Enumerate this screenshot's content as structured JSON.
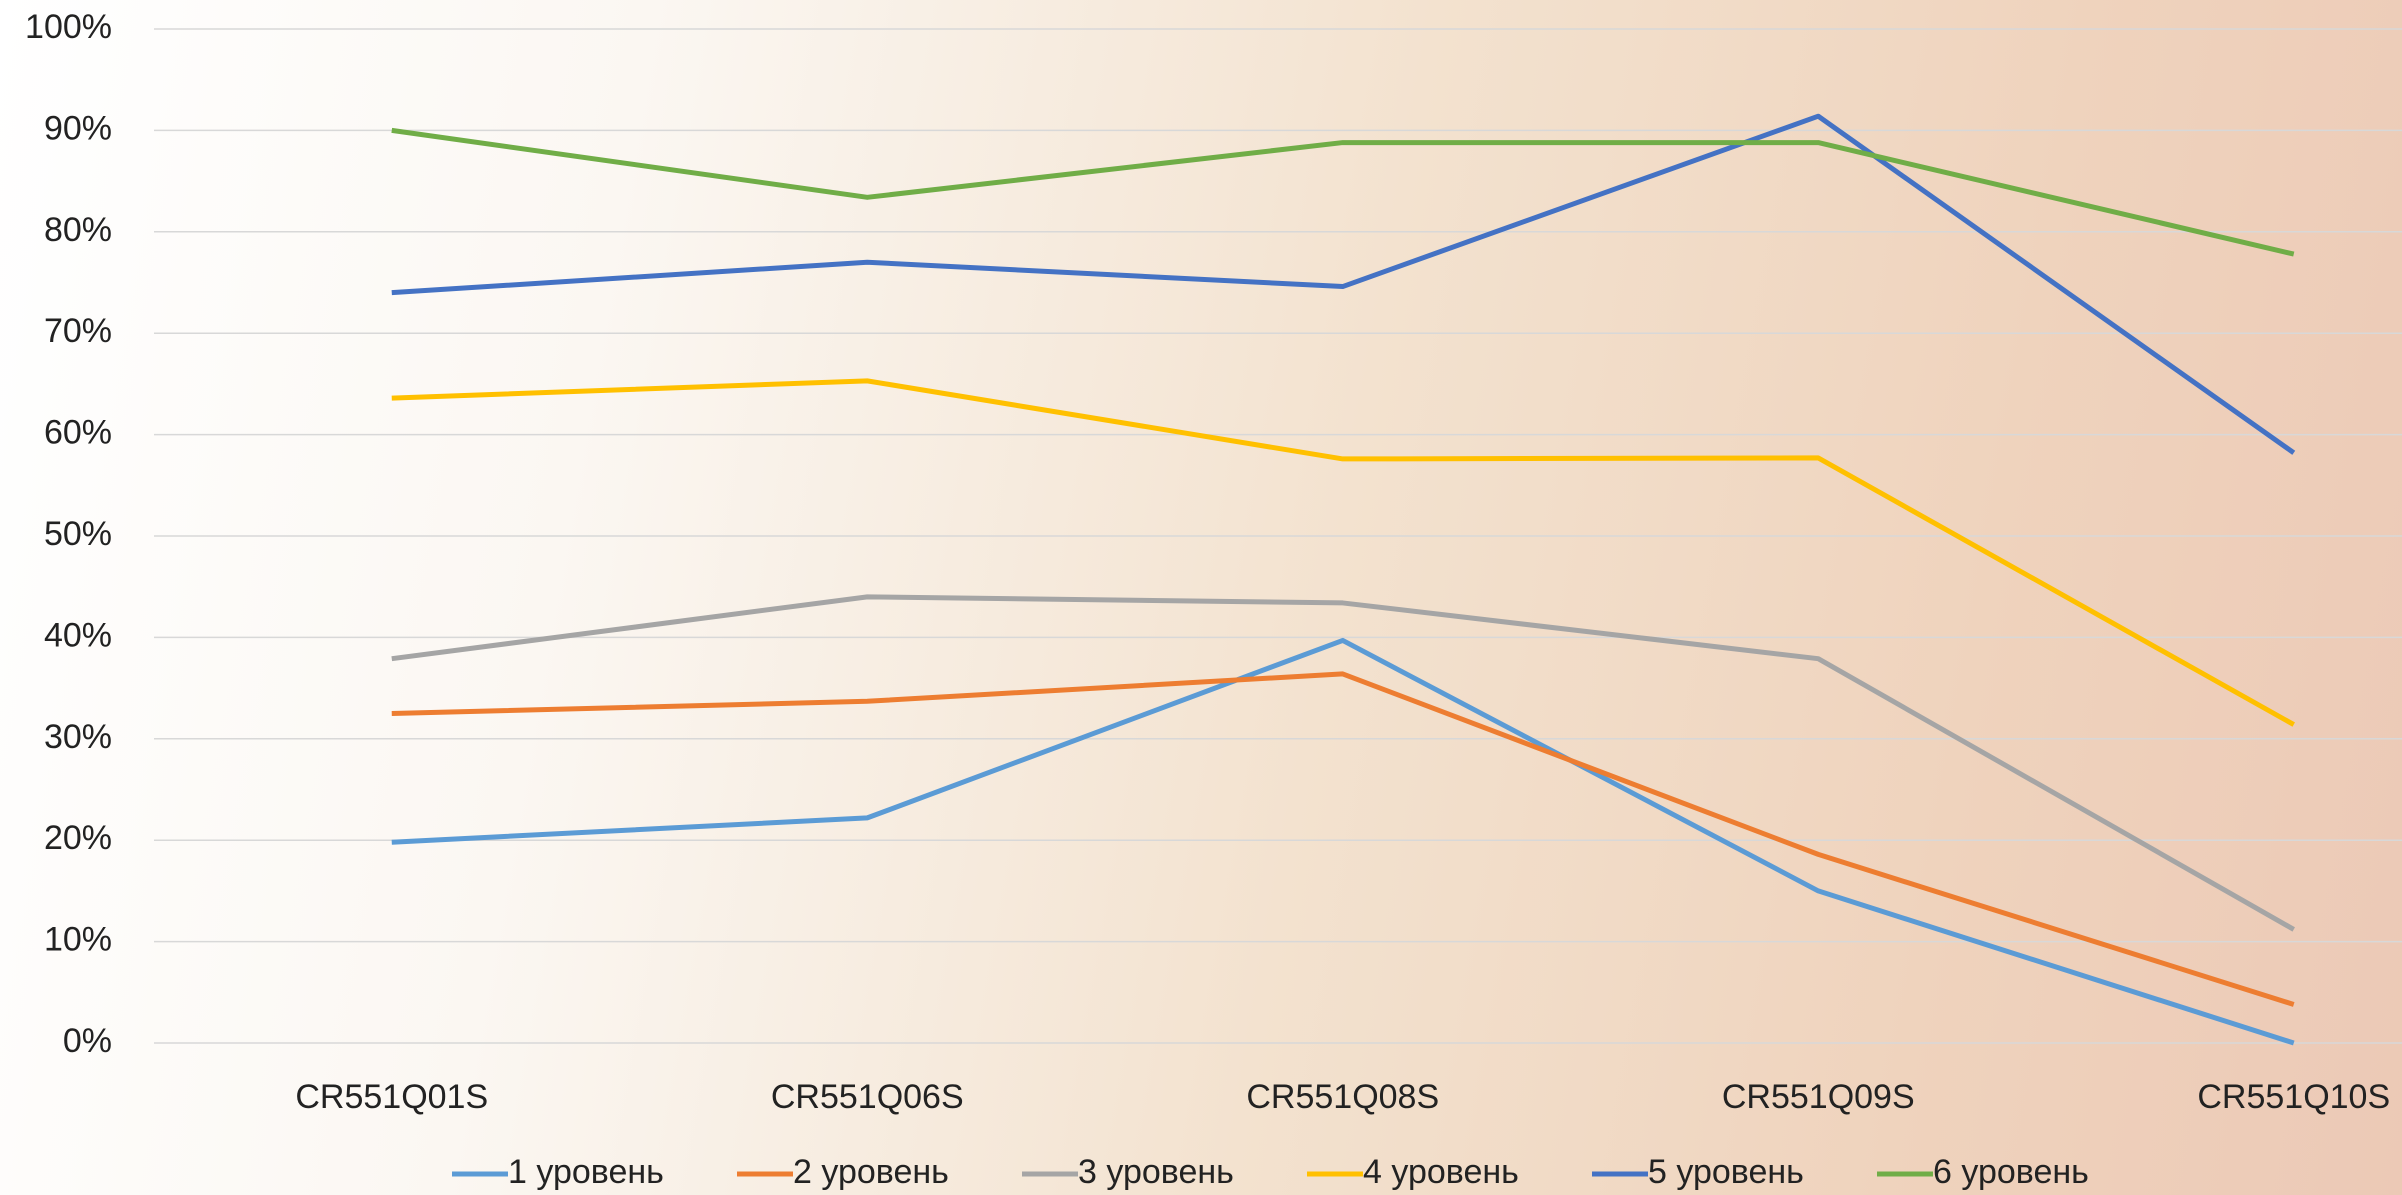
{
  "chart_data": {
    "type": "line",
    "categories": [
      "CR551Q01S",
      "CR551Q06S",
      "CR551Q08S",
      "CR551Q09S",
      "CR551Q10S"
    ],
    "series": [
      {
        "name": "1 уровень",
        "color": "#5b9bd5",
        "values": [
          19.8,
          22.2,
          39.7,
          15.0,
          0
        ]
      },
      {
        "name": "2 уровень",
        "color": "#ed7d31",
        "values": [
          32.5,
          33.7,
          36.4,
          18.6,
          3.8
        ]
      },
      {
        "name": "3 уровень",
        "color": "#a5a5a5",
        "values": [
          37.9,
          44.0,
          43.4,
          37.9,
          11.2
        ]
      },
      {
        "name": "4 уровень",
        "color": "#ffc000",
        "values": [
          63.6,
          65.3,
          57.6,
          57.7,
          31.4
        ]
      },
      {
        "name": "5 уровень",
        "color": "#4472c4",
        "values": [
          74.0,
          77.0,
          74.6,
          91.4,
          58.2
        ]
      },
      {
        "name": "6 уровень",
        "color": "#70ad47",
        "values": [
          90.0,
          83.4,
          88.8,
          88.8,
          77.8
        ]
      }
    ],
    "ylim": [
      0,
      100
    ],
    "yticks": [
      {
        "value": 0,
        "label": "0%"
      },
      {
        "value": 10,
        "label": "10%"
      },
      {
        "value": 20,
        "label": "20%"
      },
      {
        "value": 30,
        "label": "30%"
      },
      {
        "value": 40,
        "label": "40%"
      },
      {
        "value": 50,
        "label": "50%"
      },
      {
        "value": 60,
        "label": "60%"
      },
      {
        "value": 70,
        "label": "70%"
      },
      {
        "value": 80,
        "label": "80%"
      },
      {
        "value": 90,
        "label": "90%"
      },
      {
        "value": 100,
        "label": "100%"
      }
    ],
    "grid": true,
    "legend": "bottom"
  }
}
